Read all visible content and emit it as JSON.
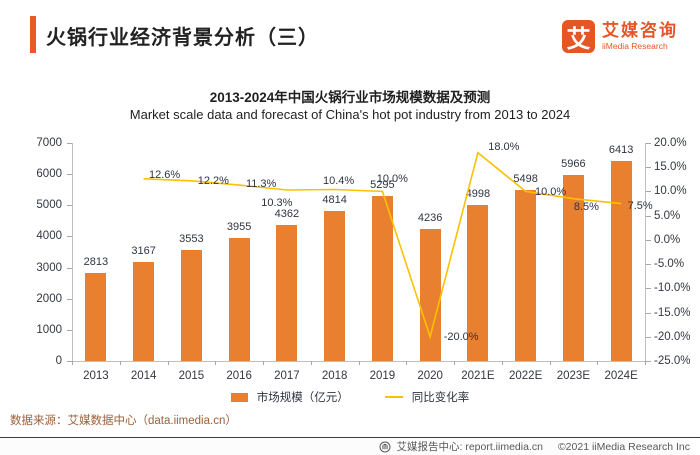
{
  "header": {
    "title": "火锅行业经济背景分析（三）",
    "accent_color": "#EA5A27"
  },
  "logo": {
    "badge_char": "艾",
    "name_cn": "艾媒咨询",
    "name_en": "iiMedia Research",
    "color": "#E65526"
  },
  "chart": {
    "title_cn": "2013-2024年中国火锅行业市场规模数据及预测",
    "title_en": "Market scale data and forecast of China's hot pot industry from 2013 to 2024"
  },
  "chart_data": {
    "type": "combo-bar-line",
    "categories": [
      "2013",
      "2014",
      "2015",
      "2016",
      "2017",
      "2018",
      "2019",
      "2020",
      "2021E",
      "2022E",
      "2023E",
      "2024E"
    ],
    "series": [
      {
        "name": "市场规模（亿元）",
        "type": "bar",
        "color": "#E8802F",
        "values": [
          2813,
          3167,
          3553,
          3955,
          4362,
          4814,
          5295,
          4236,
          4998,
          5498,
          5966,
          6413
        ]
      },
      {
        "name": "同比变化率",
        "type": "line",
        "color": "#FFC000",
        "values": [
          null,
          12.6,
          12.2,
          11.3,
          10.3,
          10.4,
          10.0,
          -20.0,
          18.0,
          10.0,
          8.5,
          7.5
        ],
        "labels": [
          null,
          "12.6%",
          "12.2%",
          "11.3%",
          "10.3%",
          "10.4%",
          "10.0%",
          "-20.0%",
          "18.0%",
          "10.0%",
          "8.5%",
          "7.5%"
        ]
      }
    ],
    "left_axis": {
      "min": 0,
      "max": 7000,
      "step": 1000,
      "ticks": [
        "7000",
        "6000",
        "5000",
        "4000",
        "3000",
        "2000",
        "1000",
        "0"
      ]
    },
    "right_axis": {
      "min": -25,
      "max": 20,
      "step": 5,
      "ticks": [
        "20.0%",
        "15.0%",
        "10.0%",
        "5.0%",
        "0.0%",
        "-5.0%",
        "-10.0%",
        "-15.0%",
        "-20.0%",
        "-25.0%"
      ]
    },
    "grid": false,
    "legend_position": "bottom-center"
  },
  "source_note": "数据来源：艾媒数据中心（data.iimedia.cn）",
  "footer": {
    "report_center": "艾媒报告中心: report.iimedia.cn",
    "copyright": "©2021  iiMedia Research Inc"
  }
}
